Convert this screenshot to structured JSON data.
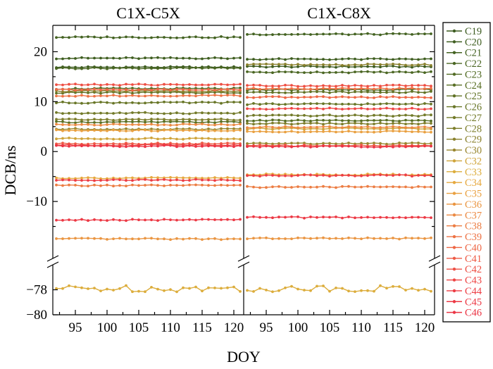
{
  "chart_data": {
    "type": "line",
    "ylabel": "DCB/ns",
    "xlabel": "DOY",
    "x_range": [
      92,
      121
    ],
    "x_ticks": [
      95,
      100,
      105,
      110,
      115,
      120
    ],
    "axis_break": {
      "upper_range": [
        -20,
        25
      ],
      "lower_range": [
        -80,
        -76
      ],
      "upper_ticks": [
        "20",
        "10",
        "0",
        "−10"
      ],
      "lower_ticks": [
        "−78",
        "−80"
      ],
      "lower_tick_values": [
        -78,
        -80
      ]
    },
    "panels": [
      {
        "title": "C1X-C5X",
        "series": [
          {
            "name": "C19",
            "color": "#3b5a1f",
            "level": 16.9
          },
          {
            "name": "C20",
            "color": "#3f5e20",
            "level": 18.7
          },
          {
            "name": "C21",
            "color": "#436221",
            "level": 22.9
          },
          {
            "name": "C22",
            "color": "#4a6622",
            "level": 16.7
          },
          {
            "name": "C23",
            "color": "#516a23",
            "level": 12.6
          },
          {
            "name": "C24",
            "color": "#586e24",
            "level": 5.9
          },
          {
            "name": "C25",
            "color": "#607225",
            "level": 11.8
          },
          {
            "name": "C26",
            "color": "#687627",
            "level": 9.8
          },
          {
            "name": "C27",
            "color": "#727a29",
            "level": 7.7
          },
          {
            "name": "C28",
            "color": "#7d7e2b",
            "level": 6.4
          },
          {
            "name": "C29",
            "color": "#8a812d",
            "level": 12.1
          },
          {
            "name": "C30",
            "color": "#98862f",
            "level": 4.5
          },
          {
            "name": "C32",
            "color": "#cfa43a",
            "level": 2.6
          },
          {
            "name": "C33",
            "color": "#dcad3c",
            "level": -77.9
          },
          {
            "name": "C34",
            "color": "#e6a83e",
            "level": -5.3
          },
          {
            "name": "C35",
            "color": "#e9a040",
            "level": 4.2
          },
          {
            "name": "C36",
            "color": "#ea9541",
            "level": -17.5
          },
          {
            "name": "C37",
            "color": "#eb8942",
            "level": 5.4
          },
          {
            "name": "C38",
            "color": "#ec7d43",
            "level": -6.8
          },
          {
            "name": "C39",
            "color": "#ed7244",
            "level": 11.2
          },
          {
            "name": "C40",
            "color": "#ee6644",
            "level": 12.4
          },
          {
            "name": "C41",
            "color": "#ee5a44",
            "level": 1.6
          },
          {
            "name": "C42",
            "color": "#ee4f44",
            "level": 13.4
          },
          {
            "name": "C43",
            "color": "#ee4544",
            "level": 1.3
          },
          {
            "name": "C44",
            "color": "#ed3d44",
            "level": -5.7
          },
          {
            "name": "C45",
            "color": "#ec3844",
            "level": -13.7
          },
          {
            "name": "C46",
            "color": "#eb3444",
            "level": 1.1
          }
        ]
      },
      {
        "title": "C1X-C8X",
        "series": [
          {
            "name": "C19",
            "color": "#3b5a1f",
            "level": 17.0
          },
          {
            "name": "C20",
            "color": "#3f5e20",
            "level": 18.5
          },
          {
            "name": "C21",
            "color": "#436221",
            "level": 23.5
          },
          {
            "name": "C22",
            "color": "#4a6622",
            "level": 15.9
          },
          {
            "name": "C23",
            "color": "#516a23",
            "level": 12.4
          },
          {
            "name": "C24",
            "color": "#586e24",
            "level": 6.2
          },
          {
            "name": "C25",
            "color": "#607225",
            "level": 11.9
          },
          {
            "name": "C26",
            "color": "#687627",
            "level": 9.5
          },
          {
            "name": "C27",
            "color": "#727a29",
            "level": 7.2
          },
          {
            "name": "C28",
            "color": "#7d7e2b",
            "level": 5.6
          },
          {
            "name": "C29",
            "color": "#8a812d",
            "level": 17.4
          },
          {
            "name": "C30",
            "color": "#98862f",
            "level": 1.6
          },
          {
            "name": "C32",
            "color": "#cfa43a",
            "level": 4.6
          },
          {
            "name": "C33",
            "color": "#dcad3c",
            "level": -77.9
          },
          {
            "name": "C34",
            "color": "#e6a83e",
            "level": -4.6
          },
          {
            "name": "C35",
            "color": "#e9a040",
            "level": 4.0
          },
          {
            "name": "C36",
            "color": "#ea9541",
            "level": -17.4
          },
          {
            "name": "C37",
            "color": "#eb8942",
            "level": 4.9
          },
          {
            "name": "C38",
            "color": "#ec7d43",
            "level": -7.1
          },
          {
            "name": "C39",
            "color": "#ed7244",
            "level": 12.6
          },
          {
            "name": "C40",
            "color": "#ee6644",
            "level": 10.9
          },
          {
            "name": "C41",
            "color": "#ee5a44",
            "level": 1.2
          },
          {
            "name": "C42",
            "color": "#ee4f44",
            "level": 13.2
          },
          {
            "name": "C43",
            "color": "#ee4544",
            "level": 8.6
          },
          {
            "name": "C44",
            "color": "#ed3d44",
            "level": -4.8
          },
          {
            "name": "C45",
            "color": "#ec3844",
            "level": -13.2
          },
          {
            "name": "C46",
            "color": "#eb3444",
            "level": 1.0
          }
        ]
      }
    ],
    "legend_position": "right",
    "grid": false
  }
}
